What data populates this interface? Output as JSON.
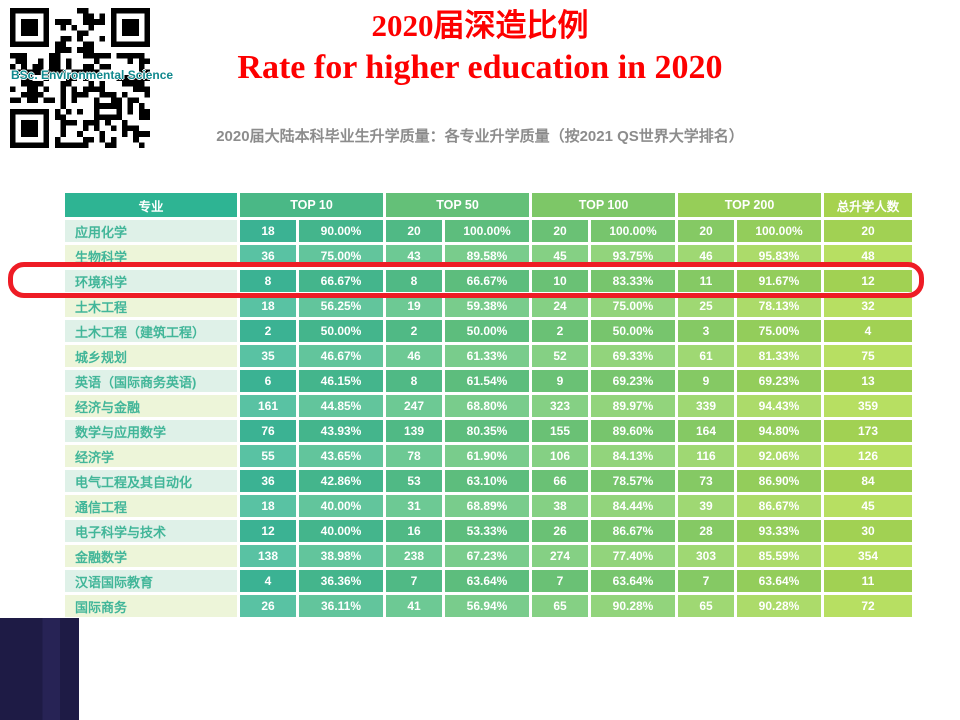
{
  "qr": {
    "label": "BSc. Environmental Science"
  },
  "title": {
    "line1": "2020届深造比例",
    "line2": "Rate for higher education in 2020"
  },
  "subtitle": "2020届大陆本科毕业生升学质量：各专业升学质量（按2021 QS世界大学排名）",
  "colors": {
    "title_red": "#fd0000",
    "highlight_red": "#ee1c25",
    "header_teal": "#2eb493",
    "header_lime": "#a6d24e",
    "navy_block": "#1e1b45",
    "subtitle_gray": "#8c8c8c"
  },
  "chart_data": {
    "type": "table",
    "title": "2020届深造比例 / Rate for higher education in 2020",
    "header": {
      "major": "专业",
      "groups": [
        "TOP 10",
        "TOP 50",
        "TOP 100",
        "TOP 200"
      ],
      "total": "总升学人数"
    },
    "highlighted_major": "环境科学",
    "rows": [
      {
        "major": "应用化学",
        "cells": [
          "18",
          "90.00%",
          "20",
          "100.00%",
          "20",
          "100.00%",
          "20",
          "100.00%",
          "20"
        ]
      },
      {
        "major": "生物科学",
        "cells": [
          "36",
          "75.00%",
          "43",
          "89.58%",
          "45",
          "93.75%",
          "46",
          "95.83%",
          "48"
        ]
      },
      {
        "major": "环境科学",
        "cells": [
          "8",
          "66.67%",
          "8",
          "66.67%",
          "10",
          "83.33%",
          "11",
          "91.67%",
          "12"
        ]
      },
      {
        "major": "土木工程",
        "cells": [
          "18",
          "56.25%",
          "19",
          "59.38%",
          "24",
          "75.00%",
          "25",
          "78.13%",
          "32"
        ]
      },
      {
        "major": "土木工程（建筑工程）",
        "cells": [
          "2",
          "50.00%",
          "2",
          "50.00%",
          "2",
          "50.00%",
          "3",
          "75.00%",
          "4"
        ]
      },
      {
        "major": "城乡规划",
        "cells": [
          "35",
          "46.67%",
          "46",
          "61.33%",
          "52",
          "69.33%",
          "61",
          "81.33%",
          "75"
        ]
      },
      {
        "major": "英语（国际商务英语)",
        "cells": [
          "6",
          "46.15%",
          "8",
          "61.54%",
          "9",
          "69.23%",
          "9",
          "69.23%",
          "13"
        ]
      },
      {
        "major": "经济与金融",
        "cells": [
          "161",
          "44.85%",
          "247",
          "68.80%",
          "323",
          "89.97%",
          "339",
          "94.43%",
          "359"
        ]
      },
      {
        "major": "数学与应用数学",
        "cells": [
          "76",
          "43.93%",
          "139",
          "80.35%",
          "155",
          "89.60%",
          "164",
          "94.80%",
          "173"
        ]
      },
      {
        "major": "经济学",
        "cells": [
          "55",
          "43.65%",
          "78",
          "61.90%",
          "106",
          "84.13%",
          "116",
          "92.06%",
          "126"
        ]
      },
      {
        "major": "电气工程及其自动化",
        "cells": [
          "36",
          "42.86%",
          "53",
          "63.10%",
          "66",
          "78.57%",
          "73",
          "86.90%",
          "84"
        ]
      },
      {
        "major": "通信工程",
        "cells": [
          "18",
          "40.00%",
          "31",
          "68.89%",
          "38",
          "84.44%",
          "39",
          "86.67%",
          "45"
        ]
      },
      {
        "major": "电子科学与技术",
        "cells": [
          "12",
          "40.00%",
          "16",
          "53.33%",
          "26",
          "86.67%",
          "28",
          "93.33%",
          "30"
        ]
      },
      {
        "major": "金融数学",
        "cells": [
          "138",
          "38.98%",
          "238",
          "67.23%",
          "274",
          "77.40%",
          "303",
          "85.59%",
          "354"
        ]
      },
      {
        "major": "汉语国际教育",
        "cells": [
          "4",
          "36.36%",
          "7",
          "63.64%",
          "7",
          "63.64%",
          "7",
          "63.64%",
          "11"
        ]
      },
      {
        "major": "国际商务",
        "cells": [
          "26",
          "36.11%",
          "41",
          "56.94%",
          "65",
          "90.28%",
          "65",
          "90.28%",
          "72"
        ]
      }
    ]
  }
}
